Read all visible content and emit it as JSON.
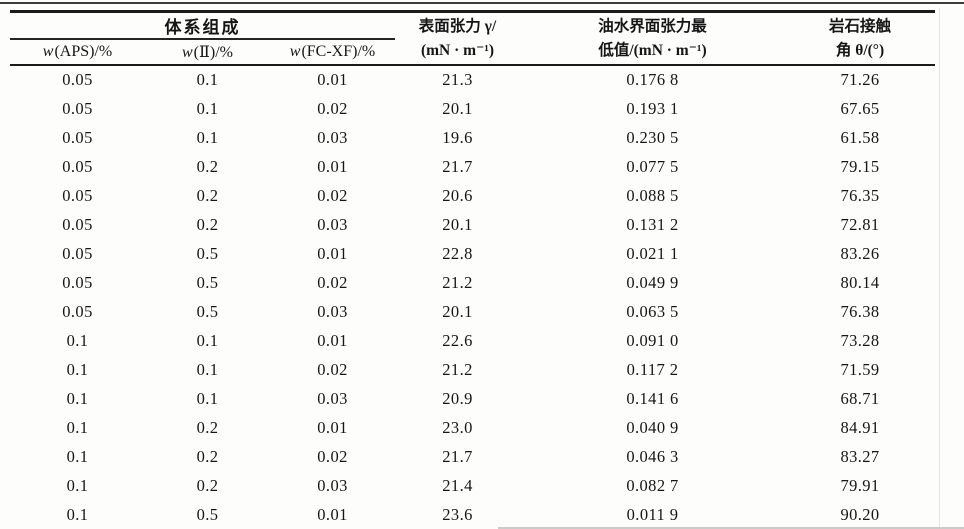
{
  "table": {
    "header": {
      "group_label": "体系组成",
      "sub_columns": [
        {
          "var": "w",
          "rest": "(APS)/%"
        },
        {
          "var": "w",
          "rest": "(Ⅱ)/%"
        },
        {
          "var": "w",
          "rest": "(FC-XF)/%"
        }
      ],
      "spanned_columns": [
        {
          "line1": "表面张力 γ/",
          "line2": "(mN · m⁻¹)"
        },
        {
          "line1": "油水界面张力最",
          "line2": "低值/(mN · m⁻¹)"
        },
        {
          "line1": "岩石接触",
          "line2": "角 θ/(°)"
        }
      ]
    },
    "rows": [
      [
        "0.05",
        "0.1",
        "0.01",
        "21.3",
        "0.176 8",
        "71.26"
      ],
      [
        "0.05",
        "0.1",
        "0.02",
        "20.1",
        "0.193 1",
        "67.65"
      ],
      [
        "0.05",
        "0.1",
        "0.03",
        "19.6",
        "0.230 5",
        "61.58"
      ],
      [
        "0.05",
        "0.2",
        "0.01",
        "21.7",
        "0.077 5",
        "79.15"
      ],
      [
        "0.05",
        "0.2",
        "0.02",
        "20.6",
        "0.088 5",
        "76.35"
      ],
      [
        "0.05",
        "0.2",
        "0.03",
        "20.1",
        "0.131 2",
        "72.81"
      ],
      [
        "0.05",
        "0.5",
        "0.01",
        "22.8",
        "0.021 1",
        "83.26"
      ],
      [
        "0.05",
        "0.5",
        "0.02",
        "21.2",
        "0.049 9",
        "80.14"
      ],
      [
        "0.05",
        "0.5",
        "0.03",
        "20.1",
        "0.063 5",
        "76.38"
      ],
      [
        "0.1",
        "0.1",
        "0.01",
        "22.6",
        "0.091 0",
        "73.28"
      ],
      [
        "0.1",
        "0.1",
        "0.02",
        "21.2",
        "0.117 2",
        "71.59"
      ],
      [
        "0.1",
        "0.1",
        "0.03",
        "20.9",
        "0.141 6",
        "68.71"
      ],
      [
        "0.1",
        "0.2",
        "0.01",
        "23.0",
        "0.040 9",
        "84.91"
      ],
      [
        "0.1",
        "0.2",
        "0.02",
        "21.7",
        "0.046 3",
        "83.27"
      ],
      [
        "0.1",
        "0.2",
        "0.03",
        "21.4",
        "0.082 7",
        "79.91"
      ],
      [
        "0.1",
        "0.5",
        "0.01",
        "23.6",
        "0.011 9",
        "90.20"
      ]
    ]
  },
  "colors": {
    "text": "#161616",
    "rule": "#1b1b1b",
    "faint_rule": "#cbcbc9",
    "paper": "#fdfdfc"
  }
}
